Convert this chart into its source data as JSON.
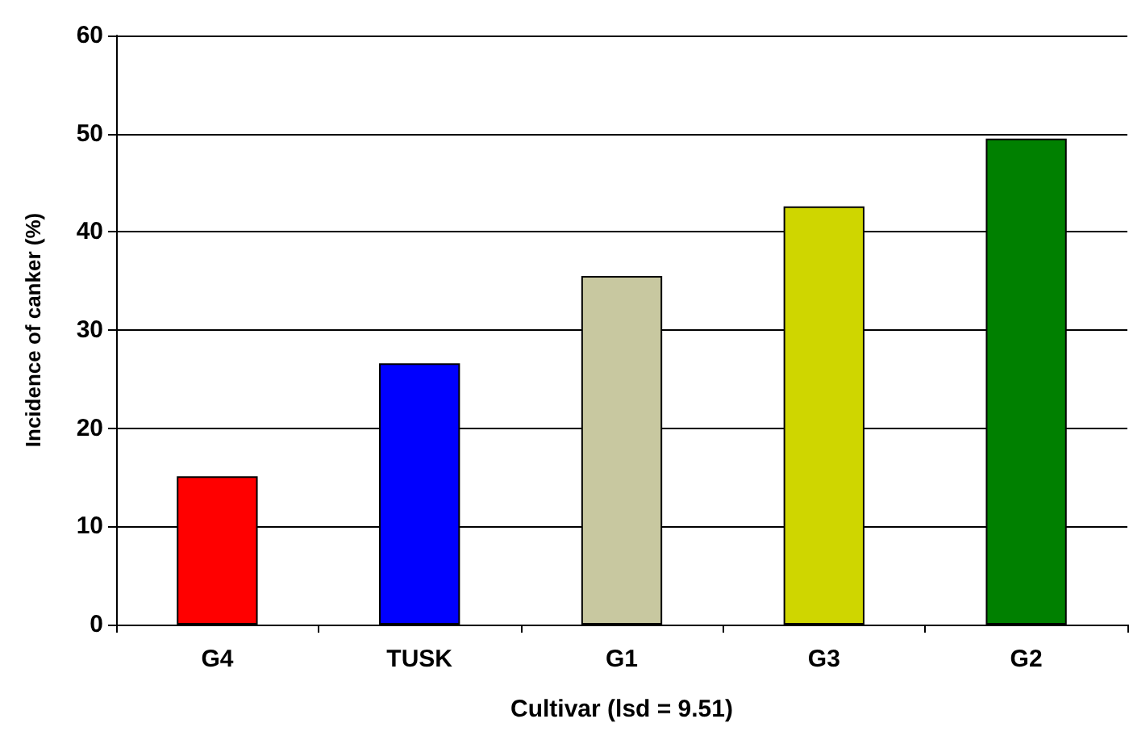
{
  "chart_data": {
    "type": "bar",
    "categories": [
      "G4",
      "TUSK",
      "G1",
      "G3",
      "G2"
    ],
    "values": [
      15.1,
      26.6,
      35.5,
      42.6,
      49.5
    ],
    "colors": [
      "#ff0000",
      "#0000ff",
      "#c8c8a0",
      "#cfd600",
      "#008000"
    ],
    "xlabel": "Cultivar (lsd = 9.51)",
    "ylabel": "Incidence of canker (%)",
    "ylim": [
      0,
      60
    ],
    "yticks": [
      0,
      10,
      20,
      30,
      40,
      50,
      60
    ],
    "grid": "y"
  }
}
